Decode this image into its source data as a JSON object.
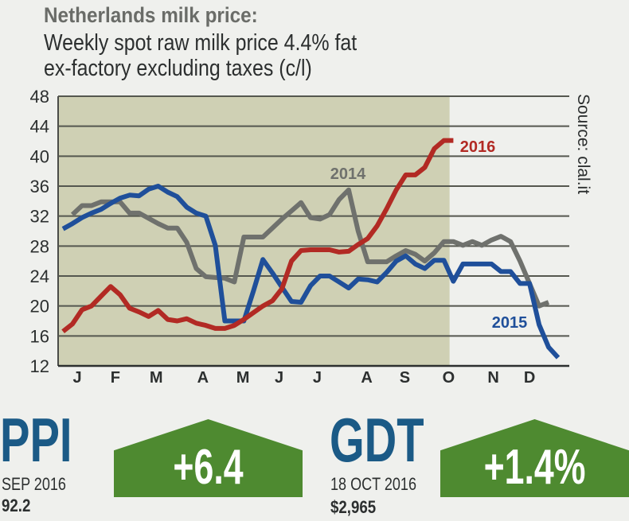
{
  "chart_data": {
    "type": "line",
    "title": "Netherlands milk price:",
    "subtitle": [
      "Weekly spot raw milk price 4.4% fat",
      "ex-factory excluding taxes (c/l)"
    ],
    "source": "Source: clal.it",
    "xlabel": "",
    "ylabel": "",
    "x_unit": "week",
    "xlim": [
      0.5,
      54
    ],
    "ylim": [
      12,
      48
    ],
    "yticks": [
      12,
      16,
      20,
      24,
      28,
      32,
      36,
      40,
      44,
      48
    ],
    "xticks": [
      {
        "label": "J",
        "week": 2.5
      },
      {
        "label": "F",
        "week": 6.5
      },
      {
        "label": "M",
        "week": 10.8
      },
      {
        "label": "A",
        "week": 15.7
      },
      {
        "label": "M",
        "week": 19.9
      },
      {
        "label": "J",
        "week": 23.7
      },
      {
        "label": "J",
        "week": 27.7
      },
      {
        "label": "A",
        "week": 32.9
      },
      {
        "label": "S",
        "week": 36.9
      },
      {
        "label": "O",
        "week": 41.5
      },
      {
        "label": "N",
        "week": 46.2
      },
      {
        "label": "D",
        "week": 50
      }
    ],
    "grid": true,
    "highlight_until_week": 41.6,
    "highlight_color": "#cfd0b4",
    "series": [
      {
        "name": "2014",
        "color": "#6f716d",
        "x": [
          2,
          3,
          4,
          5,
          6,
          7,
          8,
          9,
          10,
          11,
          12,
          13,
          14,
          15,
          16,
          17,
          18,
          19,
          20,
          21,
          22,
          23,
          24,
          25,
          26,
          27,
          28,
          29,
          30,
          31,
          32,
          33,
          34,
          35,
          36,
          37,
          38,
          39,
          40,
          41,
          42,
          43,
          44,
          45,
          46,
          47,
          48,
          49,
          50,
          51,
          52
        ],
        "values": [
          32.2,
          33.4,
          33.4,
          33.9,
          33.9,
          33.9,
          32.4,
          32.4,
          31.7,
          31,
          30.4,
          30.4,
          28.5,
          25,
          23.9,
          23.8,
          23.7,
          23.2,
          29.2,
          29.2,
          29.2,
          30.4,
          31.6,
          32.7,
          33.8,
          31.8,
          31.6,
          32.2,
          34.2,
          35.5,
          30,
          25.9,
          25.9,
          25.9,
          26.7,
          27.4,
          26.9,
          26,
          27.1,
          28.6,
          28.6,
          28.1,
          28.6,
          28.1,
          28.8,
          29.3,
          28.6,
          26,
          23,
          20,
          20.5
        ]
      },
      {
        "name": "2015",
        "color": "#1f4f9a",
        "x": [
          1,
          2,
          3,
          4,
          5,
          6,
          7,
          8,
          9,
          10,
          11,
          12,
          13,
          14,
          15,
          16,
          17,
          18,
          19,
          20,
          21,
          22,
          23,
          24,
          25,
          26,
          27,
          28,
          29,
          30,
          31,
          32,
          33,
          34,
          35,
          36,
          37,
          38,
          39,
          40,
          41,
          42,
          43,
          44,
          45,
          46,
          47,
          48,
          49,
          50,
          51,
          52,
          53
        ],
        "values": [
          30.3,
          31,
          31.8,
          32.4,
          32.9,
          33.7,
          34.4,
          34.8,
          34.7,
          35.6,
          36,
          35.2,
          34.6,
          33.2,
          32.4,
          32,
          28.1,
          18,
          18,
          18,
          22,
          26.2,
          24.4,
          22.5,
          20.6,
          20.5,
          22.7,
          24,
          24,
          23.2,
          22.4,
          23.6,
          23.5,
          23.2,
          24.5,
          26,
          26.7,
          25.6,
          25,
          26.1,
          26.1,
          23.3,
          25.6,
          25.6,
          25.6,
          25.6,
          24.6,
          24.6,
          23,
          23,
          17.5,
          14.5,
          13.1
        ]
      },
      {
        "name": "2016",
        "color": "#b22a24",
        "x": [
          1,
          2,
          3,
          4,
          5,
          6,
          7,
          8,
          9,
          10,
          11,
          12,
          13,
          14,
          15,
          16,
          17,
          18,
          19,
          20,
          21,
          22,
          23,
          24,
          25,
          26,
          27,
          28,
          29,
          30,
          31,
          32,
          33,
          34,
          35,
          36,
          37,
          38,
          39,
          40,
          41,
          42
        ],
        "values": [
          16.6,
          17.6,
          19.5,
          20,
          21.3,
          22.6,
          21.5,
          19.7,
          19.2,
          18.6,
          19.4,
          18.2,
          18,
          18.3,
          17.7,
          17.4,
          17,
          17,
          17.4,
          18.2,
          19.1,
          20,
          20.7,
          22.3,
          26,
          27.4,
          27.5,
          27.5,
          27.5,
          27.2,
          27.3,
          28.2,
          29,
          30.7,
          33,
          35.5,
          37.5,
          37.5,
          38.5,
          41,
          42.1,
          42.1
        ]
      }
    ]
  },
  "indicators": {
    "ppi": {
      "label": "PPI",
      "date": "SEP 2016",
      "value": "92.2",
      "change": "+6.4"
    },
    "gdt": {
      "label": "GDT",
      "date": "18 OCT 2016",
      "value": "$2,965",
      "change": "+1.4%"
    },
    "label_color": "#1b5a86",
    "change_color": "#4e8a30"
  }
}
